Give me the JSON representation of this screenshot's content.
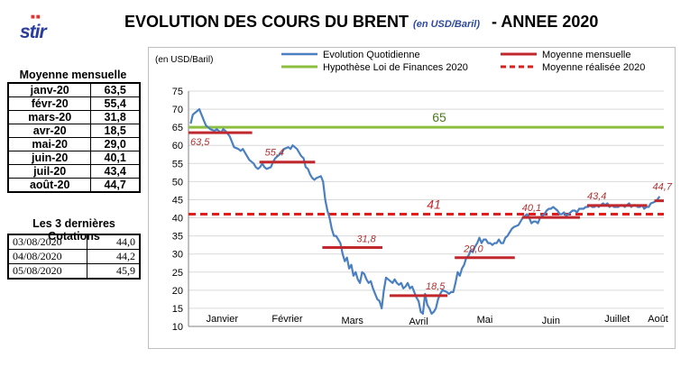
{
  "header": {
    "logo_text": "stir",
    "title": "EVOLUTION DES COURS DU BRENT",
    "unit": "(en USD/Baril)",
    "year_label": "- ANNEE 2020"
  },
  "monthly_table": {
    "title": "Moyenne mensuelle",
    "rows": [
      {
        "month": "janv-20",
        "value": "63,5"
      },
      {
        "month": "févr-20",
        "value": "55,4"
      },
      {
        "month": "mars-20",
        "value": "31,8"
      },
      {
        "month": "avr-20",
        "value": "18,5"
      },
      {
        "month": "mai-20",
        "value": "29,0"
      },
      {
        "month": "juin-20",
        "value": "40,1"
      },
      {
        "month": "juil-20",
        "value": "43,4"
      },
      {
        "month": "août-20",
        "value": "44,7"
      }
    ]
  },
  "quotes_table": {
    "title": "Les 3 dernières Cotations",
    "rows": [
      {
        "date": "03/08/2020",
        "value": "44,0"
      },
      {
        "date": "04/08/2020",
        "value": "44,2"
      },
      {
        "date": "05/08/2020",
        "value": "45,9"
      }
    ]
  },
  "chart_data": {
    "type": "line",
    "ylabel": "(en USD/Baril)",
    "ylim": [
      10,
      75
    ],
    "yticks": [
      10,
      15,
      20,
      25,
      30,
      35,
      40,
      45,
      50,
      55,
      60,
      65,
      70,
      75
    ],
    "grid": true,
    "legend_position": "top",
    "x_range_days": [
      0,
      219
    ],
    "months": [
      {
        "label": "Janvier",
        "start": 0,
        "end": 31
      },
      {
        "label": "Février",
        "start": 31,
        "end": 60
      },
      {
        "label": "Mars",
        "start": 60,
        "end": 91
      },
      {
        "label": "Avril",
        "start": 91,
        "end": 121
      },
      {
        "label": "Mai",
        "start": 121,
        "end": 152
      },
      {
        "label": "Juin",
        "start": 152,
        "end": 182
      },
      {
        "label": "Juillet",
        "start": 182,
        "end": 213
      },
      {
        "label": "Août",
        "start": 213,
        "end": 219
      }
    ],
    "series": [
      {
        "name": "Evolution Quotidienne",
        "color": "#4a7fc1",
        "points": [
          [
            1,
            66
          ],
          [
            2,
            68.5
          ],
          [
            4,
            69.5
          ],
          [
            5,
            70
          ],
          [
            6,
            68.5
          ],
          [
            7,
            67
          ],
          [
            8,
            65.5
          ],
          [
            9,
            65
          ],
          [
            10,
            64.5
          ],
          [
            12,
            64
          ],
          [
            13,
            64.5
          ],
          [
            15,
            63.5
          ],
          [
            16,
            64.5
          ],
          [
            17,
            64
          ],
          [
            19,
            62.5
          ],
          [
            20,
            61
          ],
          [
            21,
            59.5
          ],
          [
            23,
            59
          ],
          [
            24,
            58.5
          ],
          [
            25,
            59
          ],
          [
            27,
            57
          ],
          [
            28,
            56
          ],
          [
            30,
            55
          ],
          [
            31,
            54
          ],
          [
            32,
            53.5
          ],
          [
            33,
            54
          ],
          [
            34,
            55
          ],
          [
            35,
            54
          ],
          [
            36,
            53.5
          ],
          [
            38,
            54
          ],
          [
            39,
            55.5
          ],
          [
            40,
            56.5
          ],
          [
            42,
            57.5
          ],
          [
            43,
            58
          ],
          [
            44,
            59
          ],
          [
            46,
            59.5
          ],
          [
            47,
            59
          ],
          [
            48,
            60
          ],
          [
            50,
            59
          ],
          [
            51,
            58
          ],
          [
            52,
            57
          ],
          [
            53,
            56.5
          ],
          [
            54,
            54
          ],
          [
            55,
            53.5
          ],
          [
            56,
            52
          ],
          [
            57,
            51
          ],
          [
            58,
            50.5
          ],
          [
            59,
            51
          ],
          [
            61,
            51.5
          ],
          [
            62,
            50
          ],
          [
            63,
            45
          ],
          [
            64,
            42
          ],
          [
            65,
            40
          ],
          [
            66,
            37
          ],
          [
            67,
            35
          ],
          [
            68,
            35
          ],
          [
            69,
            34
          ],
          [
            70,
            33
          ],
          [
            71,
            30
          ],
          [
            72,
            28
          ],
          [
            73,
            29
          ],
          [
            74,
            26
          ],
          [
            75,
            27
          ],
          [
            76,
            24
          ],
          [
            77,
            25
          ],
          [
            78,
            23
          ],
          [
            79,
            22
          ],
          [
            80,
            25
          ],
          [
            81,
            24.5
          ],
          [
            82,
            23
          ],
          [
            83,
            22
          ],
          [
            84,
            22.5
          ],
          [
            85,
            20.5
          ],
          [
            86,
            19
          ],
          [
            87,
            17.5
          ],
          [
            88,
            17
          ],
          [
            89,
            15
          ],
          [
            90,
            20
          ],
          [
            91,
            23.5
          ],
          [
            92,
            23
          ],
          [
            93,
            22.5
          ],
          [
            94,
            22
          ],
          [
            95,
            23
          ],
          [
            96,
            22
          ],
          [
            97,
            21.5
          ],
          [
            98,
            22
          ],
          [
            99,
            20.5
          ],
          [
            100,
            21
          ],
          [
            101,
            22
          ],
          [
            102,
            20.5
          ],
          [
            103,
            21
          ],
          [
            104,
            19.5
          ],
          [
            105,
            18
          ],
          [
            106,
            17
          ],
          [
            107,
            14
          ],
          [
            108,
            13.5
          ],
          [
            109,
            19
          ],
          [
            110,
            16
          ],
          [
            111,
            15
          ],
          [
            112,
            13.5
          ],
          [
            113,
            14
          ],
          [
            114,
            15
          ],
          [
            115,
            17.5
          ],
          [
            116,
            19
          ],
          [
            117,
            20
          ],
          [
            119,
            19.5
          ],
          [
            120,
            19
          ],
          [
            121,
            19.5
          ],
          [
            122,
            19.5
          ],
          [
            123,
            22
          ],
          [
            124,
            25
          ],
          [
            125,
            24
          ],
          [
            126,
            26
          ],
          [
            127,
            27
          ],
          [
            128,
            29
          ],
          [
            129,
            29.5
          ],
          [
            130,
            31
          ],
          [
            131,
            30.5
          ],
          [
            132,
            32
          ],
          [
            133,
            33
          ],
          [
            134,
            34.5
          ],
          [
            135,
            33
          ],
          [
            136,
            34
          ],
          [
            137,
            34
          ],
          [
            138,
            33
          ],
          [
            139,
            33
          ],
          [
            140,
            32.5
          ],
          [
            141,
            33
          ],
          [
            142,
            33
          ],
          [
            143,
            34
          ],
          [
            144,
            33
          ],
          [
            145,
            33
          ],
          [
            146,
            34.5
          ],
          [
            147,
            35
          ],
          [
            148,
            36
          ],
          [
            149,
            37
          ],
          [
            150,
            37.5
          ],
          [
            152,
            38
          ],
          [
            153,
            39
          ],
          [
            154,
            40
          ],
          [
            155,
            40.5
          ],
          [
            156,
            41
          ],
          [
            157,
            40
          ],
          [
            158,
            38.5
          ],
          [
            159,
            39
          ],
          [
            160,
            39
          ],
          [
            161,
            38.5
          ],
          [
            162,
            40
          ],
          [
            163,
            40.5
          ],
          [
            164,
            41
          ],
          [
            165,
            42
          ],
          [
            166,
            42.5
          ],
          [
            167,
            42.5
          ],
          [
            168,
            43
          ],
          [
            170,
            42
          ],
          [
            171,
            41
          ],
          [
            172,
            41
          ],
          [
            173,
            41.5
          ],
          [
            174,
            40.5
          ],
          [
            175,
            41
          ],
          [
            176,
            41.5
          ],
          [
            177,
            42
          ],
          [
            178,
            42
          ],
          [
            179,
            41.5
          ],
          [
            180,
            42.5
          ],
          [
            182,
            42.5
          ],
          [
            183,
            43
          ],
          [
            184,
            43
          ],
          [
            185,
            43.5
          ],
          [
            186,
            43
          ],
          [
            187,
            43
          ],
          [
            188,
            43.5
          ],
          [
            189,
            43
          ],
          [
            190,
            43.5
          ],
          [
            191,
            44
          ],
          [
            192,
            43.5
          ],
          [
            193,
            44
          ],
          [
            194,
            43
          ],
          [
            195,
            43.5
          ],
          [
            196,
            43
          ],
          [
            197,
            43
          ],
          [
            198,
            43
          ],
          [
            199,
            43.5
          ],
          [
            200,
            43.5
          ],
          [
            201,
            43
          ],
          [
            202,
            43.5
          ],
          [
            203,
            44
          ],
          [
            204,
            43
          ],
          [
            205,
            43.5
          ],
          [
            206,
            43.5
          ],
          [
            207,
            43
          ],
          [
            208,
            43
          ],
          [
            209,
            43.5
          ],
          [
            210,
            42.5
          ],
          [
            211,
            43
          ],
          [
            212,
            43
          ],
          [
            213,
            44
          ],
          [
            214,
            44.2
          ],
          [
            215,
            44.5
          ],
          [
            216,
            45
          ],
          [
            217,
            45.9
          ]
        ]
      },
      {
        "name": "Moyenne mensuelle",
        "color": "#c0282d",
        "segments": [
          {
            "start": 0,
            "end": 31,
            "value": 63.5,
            "label": "63,5"
          },
          {
            "start": 31,
            "end": 60,
            "value": 55.4,
            "label": "55,4"
          },
          {
            "start": 60,
            "end": 91,
            "value": 31.8,
            "label": "31,8"
          },
          {
            "start": 91,
            "end": 121,
            "value": 18.5,
            "label": "18,5"
          },
          {
            "start": 121,
            "end": 152,
            "value": 29.0,
            "label": "29,0"
          },
          {
            "start": 152,
            "end": 182,
            "value": 40.1,
            "label": "40,1"
          },
          {
            "start": 182,
            "end": 213,
            "value": 43.4,
            "label": "43,4"
          },
          {
            "start": 213,
            "end": 219,
            "value": 44.7,
            "label": "44,7"
          }
        ]
      },
      {
        "name": "Hypothèse Loi de Finances 2020",
        "color": "#8cbf3f",
        "value": 65,
        "label": "65"
      },
      {
        "name": "Moyenne réalisée 2020",
        "color": "#e01e1e",
        "value": 41,
        "label": "41"
      }
    ]
  }
}
